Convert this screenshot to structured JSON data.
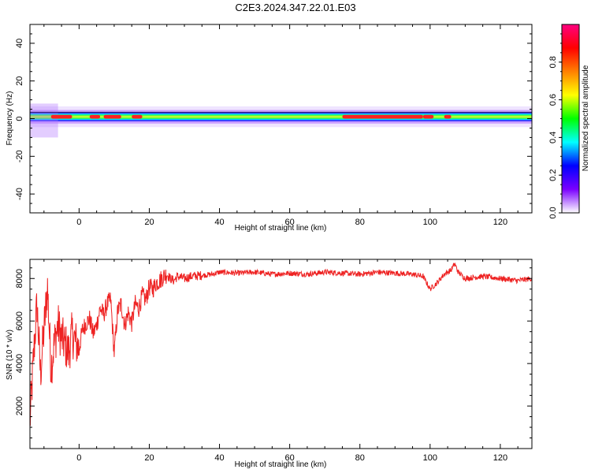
{
  "title": "C2E3.2024.347.22.01.E03",
  "colors": {
    "line": "#ee2222",
    "axis": "#000000",
    "background": "#ffffff"
  },
  "chart_data": [
    {
      "type": "heatmap",
      "xlabel": "Height of straight line (km)",
      "ylabel": "Frequency (Hz)",
      "xlim": [
        -14,
        129
      ],
      "ylim": [
        -50,
        50
      ],
      "x_ticks": [
        0,
        20,
        40,
        60,
        80,
        100,
        120
      ],
      "y_ticks": [
        -40,
        -20,
        0,
        20,
        40
      ],
      "colorbar": {
        "label": "Normalized spectral amplitude",
        "range": [
          0,
          1
        ],
        "ticks": [
          "0.0",
          "0.2",
          "0.4",
          "0.6",
          "0.8"
        ],
        "colormap": [
          "#ffffff",
          "#7a00ff",
          "#0000ff",
          "#00ffff",
          "#00ff00",
          "#ffff00",
          "#ff8000",
          "#ff0000",
          "#ff0080"
        ]
      },
      "band": {
        "center_frequency_hz": 1,
        "strong_segments_km": [
          [
            -8,
            -2
          ],
          [
            3,
            6
          ],
          [
            7,
            12
          ],
          [
            15,
            18
          ],
          [
            75,
            98
          ],
          [
            98,
            101
          ],
          [
            104,
            106
          ]
        ],
        "grid": false
      }
    },
    {
      "type": "line",
      "xlabel": "Height of straight line (km)",
      "ylabel": "SNR (10 * v/v)",
      "xlim": [
        -14,
        129
      ],
      "ylim": [
        0,
        8900
      ],
      "x_ticks": [
        0,
        20,
        40,
        60,
        80,
        100,
        120
      ],
      "y_ticks": [
        2000,
        4000,
        6000,
        8000
      ],
      "grid": false,
      "series": [
        {
          "x": [
            -14,
            -13,
            -12,
            -11,
            -10,
            -9,
            -8,
            -7,
            -6,
            -5,
            -4,
            -3,
            -2,
            -1,
            0,
            1,
            2,
            3,
            4,
            5,
            6,
            7,
            8,
            9,
            10,
            11,
            12,
            13,
            14,
            15,
            16,
            17,
            18,
            19,
            20,
            21,
            22,
            23,
            24,
            25,
            26,
            27,
            28,
            30,
            32,
            35,
            38,
            40,
            45,
            50,
            55,
            60,
            65,
            70,
            75,
            80,
            85,
            90,
            95,
            98,
            100,
            102,
            104,
            106,
            107,
            108,
            110,
            115,
            120,
            125,
            129
          ],
          "values": [
            1200,
            4200,
            6800,
            3500,
            5600,
            7600,
            3800,
            5000,
            5800,
            5200,
            4900,
            4500,
            5400,
            5000,
            4700,
            5600,
            5900,
            6100,
            5400,
            5800,
            6600,
            6300,
            6800,
            7000,
            4500,
            6500,
            6800,
            5800,
            6400,
            5900,
            6800,
            6600,
            7200,
            7000,
            7600,
            7500,
            7800,
            7900,
            8100,
            8200,
            8000,
            7900,
            8100,
            8000,
            8100,
            8150,
            8200,
            8300,
            8250,
            8300,
            8200,
            8250,
            8200,
            8300,
            8250,
            8200,
            8300,
            8250,
            8200,
            8100,
            7500,
            7800,
            8200,
            8400,
            8700,
            8300,
            8000,
            8100,
            8000,
            7900,
            8000
          ]
        }
      ]
    }
  ]
}
